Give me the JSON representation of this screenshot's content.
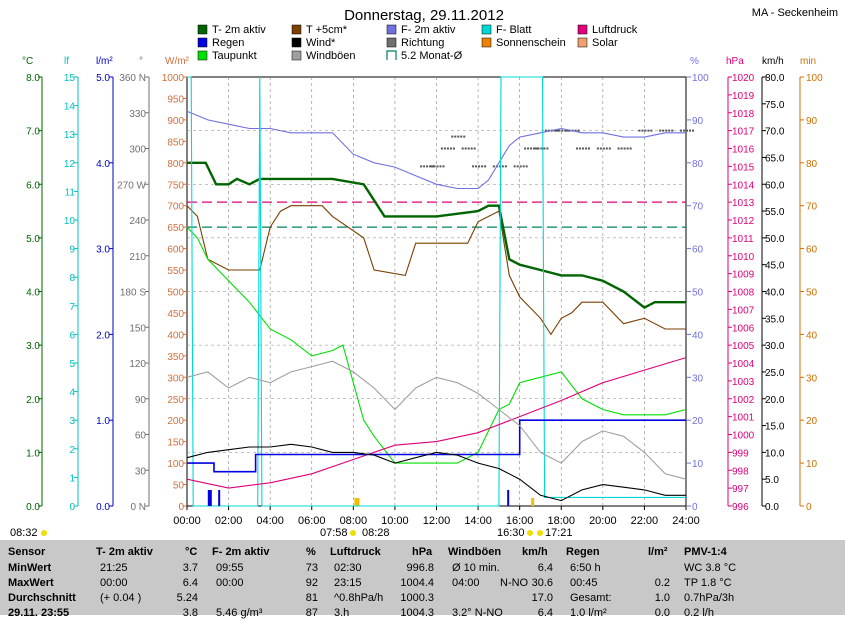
{
  "header": {
    "title": "Donnerstag, 29.11.2012",
    "station": "MA - Seckenheim"
  },
  "legend": [
    {
      "label": "T- 2m aktiv",
      "color": "#006400"
    },
    {
      "label": "T +5cm*",
      "color": "#7b3f00"
    },
    {
      "label": "F- 2m aktiv",
      "color": "#7070e0"
    },
    {
      "label": "F- Blatt",
      "color": "#00d8d8"
    },
    {
      "label": "Luftdruck",
      "color": "#e0007a"
    },
    {
      "label": "Regen",
      "color": "#0000e0"
    },
    {
      "label": "Wind*",
      "color": "#000000"
    },
    {
      "label": "Richtung",
      "color": "#707070"
    },
    {
      "label": "Sonnenschein",
      "color": "#f08000"
    },
    {
      "label": "Solar",
      "color": "#f0a070"
    },
    {
      "label": "Taupunkt",
      "color": "#00e000"
    },
    {
      "label": "Windböen",
      "color": "#a0a0a0"
    },
    {
      "label": "5.2 Monat-Ø",
      "color": "#008060"
    }
  ],
  "axis_units": {
    "temp": "°C",
    "lf": "lf",
    "rain": "l/m²",
    "dir": "°",
    "solar": "W/m²",
    "hum": "%",
    "press": "hPa",
    "wind": "km/h",
    "min": "min"
  },
  "chart_data": {
    "type": "line",
    "title": "Donnerstag, 29.11.2012",
    "x_ticks": [
      "00:00",
      "02:00",
      "04:00",
      "06:00",
      "08:00",
      "10:00",
      "12:00",
      "14:00",
      "16:00",
      "18:00",
      "20:00",
      "22:00",
      "24:00"
    ],
    "x_range_hours": [
      0,
      24
    ],
    "axes": {
      "temp_c": {
        "range": [
          0,
          8
        ],
        "ticks": [
          "0.0",
          "1.0",
          "2.0",
          "3.0",
          "4.0",
          "5.0",
          "6.0",
          "7.0",
          "8.0"
        ]
      },
      "lf": {
        "range": [
          0,
          15
        ],
        "ticks": [
          "0",
          "1",
          "2",
          "3",
          "4",
          "5",
          "6",
          "7",
          "8",
          "9",
          "10",
          "11",
          "12",
          "13",
          "14",
          "15"
        ]
      },
      "rain_lm2": {
        "range": [
          0,
          5
        ],
        "ticks": [
          "0.0",
          "1.0",
          "2.0",
          "3.0",
          "4.0",
          "5.0"
        ]
      },
      "direction_deg": {
        "range": [
          0,
          360
        ],
        "ticks": [
          "0 N",
          "30",
          "60",
          "90",
          "120",
          "150",
          "180 S",
          "210",
          "240",
          "270 W",
          "300",
          "330",
          "360 N"
        ]
      },
      "solar_wm2": {
        "range": [
          0,
          1000
        ],
        "ticks": [
          "0",
          "50",
          "100",
          "150",
          "200",
          "250",
          "300",
          "350",
          "400",
          "450",
          "500",
          "550",
          "600",
          "650",
          "700",
          "750",
          "800",
          "850",
          "900",
          "950",
          "1000"
        ]
      },
      "humidity_pct": {
        "range": [
          0,
          100
        ],
        "ticks": [
          "0",
          "10",
          "20",
          "30",
          "40",
          "50",
          "60",
          "70",
          "80",
          "90",
          "100"
        ]
      },
      "pressure_hpa": {
        "range": [
          996,
          1020
        ],
        "ticks": [
          "996",
          "997",
          "998",
          "999",
          "1000",
          "1001",
          "1002",
          "1003",
          "1004",
          "1005",
          "1006",
          "1007",
          "1008",
          "1009",
          "1010",
          "1011",
          "1012",
          "1013",
          "1014",
          "1015",
          "1016",
          "1017",
          "1018",
          "1019",
          "1020"
        ]
      },
      "wind_kmh": {
        "range": [
          0,
          80
        ],
        "ticks": [
          "0.0",
          "5.0",
          "10.0",
          "15.0",
          "20.0",
          "25.0",
          "30.0",
          "35.0",
          "40.0",
          "45.0",
          "50.0",
          "55.0",
          "60.0",
          "65.0",
          "70.0",
          "75.0",
          "80.0"
        ]
      },
      "sun_min": {
        "range": [
          0,
          100
        ],
        "ticks": [
          "0",
          "10",
          "20",
          "30",
          "40",
          "50",
          "60",
          "70",
          "80",
          "90",
          "100"
        ]
      }
    },
    "series": [
      {
        "name": "T- 2m aktiv",
        "axis": "temp_c",
        "color": "#006400",
        "x": [
          0,
          0.9,
          1.4,
          2.0,
          2.4,
          3.0,
          3.5,
          4.0,
          5.5,
          7.0,
          8.5,
          9.0,
          9.5,
          12.0,
          14.0,
          14.5,
          15.0,
          15.5,
          16.0,
          17.0,
          18.0,
          19.0,
          20.0,
          21.0,
          22.0,
          22.5,
          24.0
        ],
        "y": [
          6.4,
          6.4,
          6.0,
          6.0,
          6.1,
          6.0,
          6.1,
          6.1,
          6.1,
          6.1,
          6.0,
          5.7,
          5.4,
          5.4,
          5.5,
          5.6,
          5.6,
          4.6,
          4.5,
          4.4,
          4.3,
          4.3,
          4.2,
          4.0,
          3.7,
          3.8,
          3.8
        ]
      },
      {
        "name": "T +5cm*",
        "axis": "temp_c",
        "color": "#7b3f00",
        "x": [
          0,
          0.5,
          1.0,
          2.0,
          3.5,
          4.0,
          4.5,
          5.0,
          6.5,
          7.0,
          8.5,
          9.0,
          10.5,
          11.0,
          13.5,
          14.0,
          15.0,
          15.5,
          16.0,
          17.0,
          17.5,
          18.0,
          18.5,
          19.0,
          20.0,
          21.0,
          22.0,
          23.0,
          24.0
        ],
        "y": [
          5.6,
          5.4,
          4.6,
          4.4,
          4.4,
          5.2,
          5.5,
          5.6,
          5.6,
          5.4,
          5.0,
          4.4,
          4.3,
          4.9,
          4.9,
          5.3,
          5.5,
          4.3,
          3.9,
          3.5,
          3.2,
          3.5,
          3.6,
          3.8,
          3.8,
          3.4,
          3.5,
          3.3,
          3.3
        ]
      },
      {
        "name": "Taupunkt",
        "axis": "temp_c",
        "color": "#00e000",
        "x": [
          0,
          0.5,
          1.0,
          2.0,
          3.0,
          4.0,
          5.0,
          6.0,
          7.0,
          7.5,
          8.0,
          8.5,
          9.0,
          10.0,
          11.0,
          12.0,
          13.0,
          14.0,
          15.0,
          15.5,
          16.0,
          17.0,
          18.0,
          19.0,
          20.0,
          21.0,
          22.0,
          23.0,
          24.0
        ],
        "y": [
          5.2,
          5.0,
          4.6,
          4.2,
          3.8,
          3.3,
          3.1,
          2.8,
          2.9,
          3.0,
          2.3,
          1.6,
          1.3,
          0.8,
          0.8,
          0.8,
          0.8,
          1.0,
          1.8,
          1.9,
          2.3,
          2.4,
          2.5,
          2.0,
          1.8,
          1.7,
          1.7,
          1.7,
          1.8
        ]
      },
      {
        "name": "F- 2m aktiv",
        "axis": "humidity_pct",
        "color": "#7070e0",
        "x": [
          0,
          1,
          2,
          3,
          4,
          5,
          6,
          7,
          8,
          9,
          10,
          11,
          12,
          13,
          14,
          14.5,
          15,
          15.5,
          16,
          17,
          18,
          19,
          20,
          21,
          22,
          23,
          24
        ],
        "y": [
          92,
          90,
          89,
          88,
          88,
          87,
          87,
          87,
          82,
          80,
          79,
          77,
          75,
          74,
          74,
          76,
          80,
          84,
          86,
          87,
          88,
          87,
          87,
          86,
          86,
          87,
          87
        ]
      },
      {
        "name": "F- Blatt",
        "axis": "humidity_pct",
        "color": "#00d8d8",
        "x": [
          0,
          0.2,
          0.3,
          3.4,
          3.5,
          3.6,
          15.0,
          15.1,
          15.2,
          17.1,
          17.2,
          24.0
        ],
        "y": [
          100,
          100,
          0,
          0,
          100,
          0,
          0,
          100,
          100,
          100,
          2,
          2
        ]
      },
      {
        "name": "Luftdruck",
        "axis": "pressure_hpa",
        "color": "#e0007a",
        "x": [
          0,
          2,
          4,
          6,
          8,
          10,
          12,
          14,
          16,
          18,
          20,
          22,
          24
        ],
        "y": [
          997.5,
          997.0,
          997.3,
          997.8,
          998.6,
          999.4,
          999.6,
          1000.1,
          1001.0,
          1001.9,
          1002.9,
          1003.6,
          1004.3
        ]
      },
      {
        "name": "Regen",
        "axis": "rain_lm2",
        "color": "#0000e0",
        "x": [
          0,
          1.3,
          1.3,
          3.3,
          3.3,
          8.0,
          8.0,
          16.0,
          16.0,
          24.0
        ],
        "y": [
          0.5,
          0.5,
          0.4,
          0.4,
          0.6,
          0.6,
          0.6,
          0.6,
          1.0,
          1.0
        ]
      },
      {
        "name": "Wind*",
        "axis": "wind_kmh",
        "color": "#000000",
        "x": [
          0,
          1,
          2,
          3,
          4,
          5,
          6,
          7,
          8,
          9,
          10,
          11,
          12,
          13,
          14,
          15,
          16,
          17,
          18,
          19,
          20,
          21,
          22,
          23,
          24
        ],
        "y": [
          9,
          10,
          10.5,
          11,
          11,
          11.5,
          11,
          10,
          10,
          9.5,
          8,
          9,
          10,
          9.5,
          8,
          7,
          5,
          2,
          1,
          3,
          4,
          3.5,
          3,
          2,
          2
        ]
      },
      {
        "name": "Windböen",
        "axis": "wind_kmh",
        "color": "#a0a0a0",
        "x": [
          0,
          1,
          2,
          3,
          4,
          5,
          6,
          7,
          8,
          9,
          10,
          11,
          12,
          13,
          14,
          15,
          16,
          17,
          18,
          19,
          20,
          21,
          22,
          23,
          24
        ],
        "y": [
          24,
          25,
          22,
          24,
          23,
          25,
          26,
          27,
          25,
          22,
          18,
          22,
          24,
          23,
          21,
          18,
          15,
          10,
          8,
          12,
          14,
          13,
          10,
          6,
          5
        ]
      }
    ],
    "reference_lines": [
      {
        "name": "Luftdruck-Ref",
        "axis": "pressure_hpa",
        "value": 1013.0,
        "color": "#e0007a"
      },
      {
        "name": "5.2 Monat-Ø",
        "axis": "temp_c",
        "value": 5.2,
        "color": "#008060"
      }
    ],
    "direction_points": {
      "axis": "direction_deg",
      "x": [
        11.5,
        12.0,
        12.5,
        13.0,
        13.5,
        14.0,
        15.0,
        16.0,
        16.5,
        17.0,
        17.5,
        18.0,
        18.5,
        19.0,
        20.0,
        21.0,
        22.0,
        23.0,
        24.0
      ],
      "y": [
        285,
        285,
        300,
        310,
        300,
        285,
        285,
        285,
        300,
        300,
        315,
        315,
        315,
        300,
        300,
        300,
        315,
        315,
        315
      ]
    },
    "sunshine_bars": {
      "axis": "sun_min",
      "x": [
        8.1,
        8.2,
        16.6
      ],
      "y": [
        1,
        1,
        1
      ]
    }
  },
  "time_markers": {
    "left_time": "08:32",
    "sunrise": "07:58",
    "sunset_label": "08:28",
    "mid1": "16:30",
    "mid2": "17:21"
  },
  "stats": {
    "headers": {
      "sensor": "Sensor",
      "t2m": "T- 2m aktiv",
      "t2m_unit": "°C",
      "f2m": "F- 2m aktiv",
      "f2m_unit": "%",
      "press": "Luftdruck",
      "press_unit": "hPa",
      "gust": "Windböen",
      "gust_unit": "km/h",
      "rain": "Regen",
      "rain_unit": "l/m²",
      "pmv": "PMV-1:4"
    },
    "rows": [
      {
        "label": "MinWert",
        "t_time": "21:25",
        "t_val": "3.7",
        "f_time": "09:55",
        "f_val": "73",
        "p_time": "02:30",
        "p_val": "996.8",
        "g_a": "Ø 10 min.",
        "g_b": "",
        "g_val": "6.4",
        "r_a": "6:50 h",
        "r_val": "",
        "pmv": "WC 3.8 °C"
      },
      {
        "label": "MaxWert",
        "t_time": "00:00",
        "t_val": "6.4",
        "f_time": "00:00",
        "f_val": "92",
        "p_time": "23:15",
        "p_val": "1004.4",
        "g_a": "04:00",
        "g_b": "N-NO",
        "g_val": "30.6",
        "r_a": "00:45",
        "r_val": "0.2",
        "pmv": "TP 1.8 °C"
      },
      {
        "label": "Durchschnitt",
        "t_time": "(+ 0.04 )",
        "t_val": "5.24",
        "f_time": "",
        "f_val": "81",
        "p_time": "^0.8hPa/h",
        "p_val": "1000.3",
        "g_a": "",
        "g_b": "",
        "g_val": "17.0",
        "r_a": "Gesamt:",
        "r_val": "1.0",
        "pmv": "0.7hPa/3h"
      },
      {
        "label": "29.11. 23:55",
        "t_time": "",
        "t_val": "3.8",
        "f_time": "5.46 g/m³",
        "f_val": "87",
        "p_time": "3.h",
        "p_val": "1004.3",
        "g_a": "3.2° N-NO",
        "g_b": "",
        "g_val": "6.4",
        "r_a": "1.0 l/m²",
        "r_val": "0.0",
        "pmv": "0.2 l/h"
      }
    ]
  }
}
